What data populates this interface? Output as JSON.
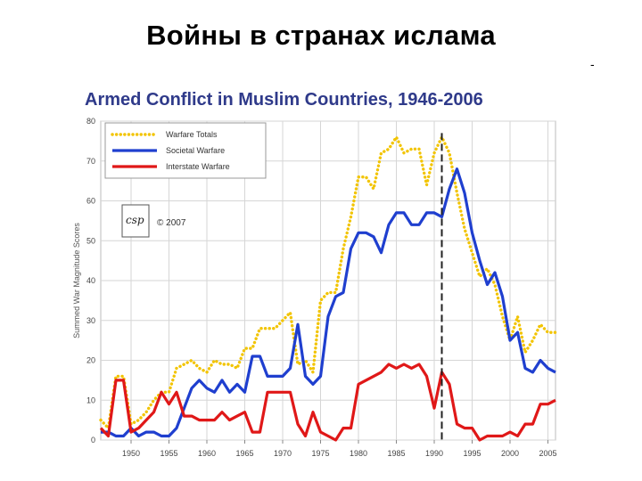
{
  "slide": {
    "title": "Войны в странах ислама",
    "corner_mark": "-"
  },
  "chart_data": {
    "type": "line",
    "title": "Armed Conflict in Muslim Countries, 1946-2006",
    "xlabel": "",
    "ylabel": "Summed War Magnitude Scores",
    "xlim": [
      1946,
      2006
    ],
    "ylim": [
      0,
      80
    ],
    "x_ticks": [
      1950,
      1955,
      1960,
      1965,
      1970,
      1975,
      1980,
      1985,
      1990,
      1995,
      2000,
      2005
    ],
    "y_ticks": [
      0,
      10,
      20,
      30,
      40,
      50,
      60,
      70,
      80
    ],
    "grid": true,
    "legend_position": "top-left",
    "copyright": "© 2007",
    "logo_text": "csp",
    "reference_line": {
      "x": 1991,
      "style": "dashed",
      "color": "#222222"
    },
    "x": [
      1946,
      1947,
      1948,
      1949,
      1950,
      1951,
      1952,
      1953,
      1954,
      1955,
      1956,
      1957,
      1958,
      1959,
      1960,
      1961,
      1962,
      1963,
      1964,
      1965,
      1966,
      1967,
      1968,
      1969,
      1970,
      1971,
      1972,
      1973,
      1974,
      1975,
      1976,
      1977,
      1978,
      1979,
      1980,
      1981,
      1982,
      1983,
      1984,
      1985,
      1986,
      1987,
      1988,
      1989,
      1990,
      1991,
      1992,
      1993,
      1994,
      1995,
      1996,
      1997,
      1998,
      1999,
      2000,
      2001,
      2002,
      2003,
      2004,
      2005,
      2006
    ],
    "series": [
      {
        "name": "Warfare Totals",
        "color": "#f2c400",
        "style": "dotted",
        "values": [
          5,
          3,
          16,
          16,
          4,
          5,
          7,
          10,
          12,
          12,
          18,
          19,
          20,
          18,
          17,
          20,
          19,
          19,
          18,
          23,
          23,
          28,
          28,
          28,
          30,
          32,
          19,
          20,
          17,
          35,
          37,
          37,
          48,
          56,
          66,
          66,
          63,
          72,
          73,
          76,
          72,
          73,
          73,
          64,
          72,
          76,
          72,
          62,
          53,
          47,
          41,
          43,
          39,
          31,
          25,
          31,
          22,
          25,
          29,
          27,
          27
        ]
      },
      {
        "name": "Societal Warfare",
        "color": "#1f3fcf",
        "style": "solid",
        "values": [
          2,
          2,
          1,
          1,
          3,
          1,
          2,
          2,
          1,
          1,
          3,
          8,
          13,
          15,
          13,
          12,
          15,
          12,
          14,
          12,
          21,
          21,
          16,
          16,
          16,
          18,
          29,
          16,
          14,
          16,
          31,
          36,
          37,
          48,
          52,
          52,
          51,
          47,
          54,
          57,
          57,
          54,
          54,
          57,
          57,
          56,
          63,
          68,
          62,
          52,
          45,
          39,
          42,
          36,
          25,
          27,
          18,
          17,
          20,
          18,
          17
        ]
      },
      {
        "name": "Interstate Warfare",
        "color": "#e01818",
        "style": "solid",
        "values": [
          3,
          1,
          15,
          15,
          2,
          3,
          5,
          7,
          12,
          9,
          12,
          6,
          6,
          5,
          5,
          5,
          7,
          5,
          6,
          7,
          2,
          2,
          12,
          12,
          12,
          12,
          4,
          1,
          7,
          2,
          1,
          0,
          3,
          3,
          14,
          15,
          16,
          17,
          19,
          18,
          19,
          18,
          19,
          16,
          8,
          17,
          14,
          4,
          3,
          3,
          0,
          1,
          1,
          1,
          2,
          1,
          4,
          4,
          9,
          9,
          10
        ]
      }
    ]
  }
}
